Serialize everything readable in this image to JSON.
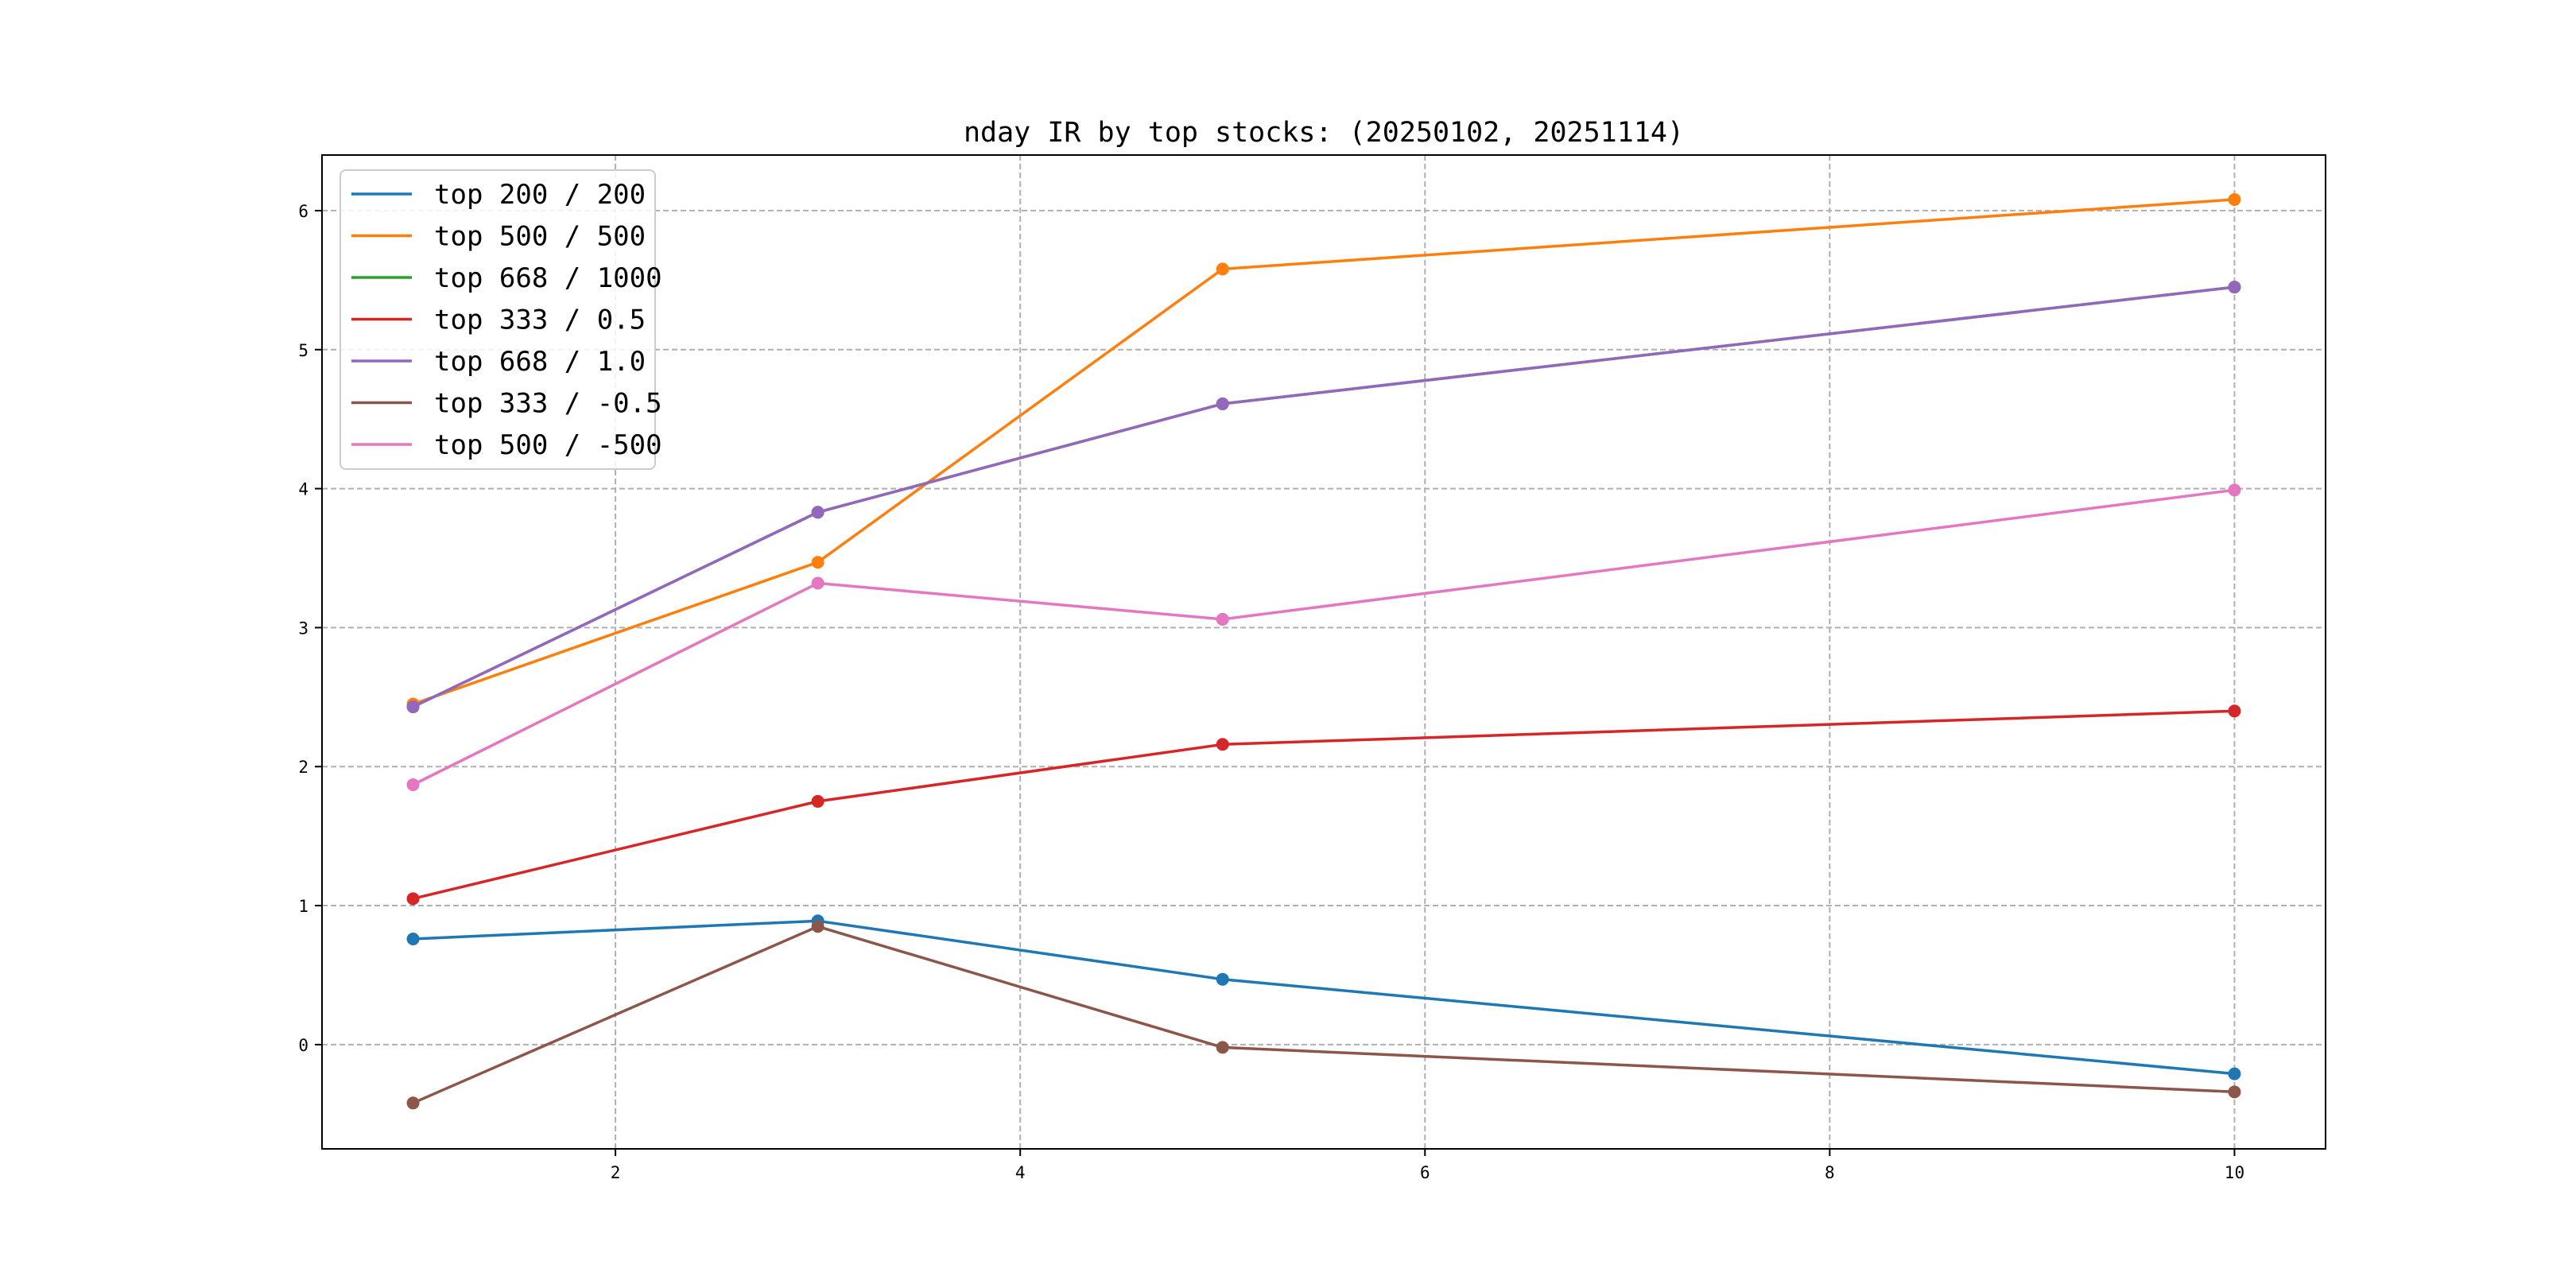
{
  "chart_data": {
    "type": "line",
    "title": "nday IR by top stocks: (20250102, 20251114)",
    "xlabel": "",
    "ylabel": "",
    "xlim": [
      0.55,
      10.45
    ],
    "ylim": [
      -0.75,
      6.4
    ],
    "x_ticks": [
      2,
      4,
      6,
      8,
      10
    ],
    "y_ticks": [
      0,
      1,
      2,
      3,
      4,
      5,
      6
    ],
    "grid": true,
    "legend_position": "upper left",
    "x": [
      1,
      3,
      5,
      10
    ],
    "series": [
      {
        "name": "top 200 / 200",
        "color": "#1f77b4",
        "values": [
          0.76,
          0.89,
          0.47,
          -0.21
        ]
      },
      {
        "name": "top 500 / 500",
        "color": "#ff7f0e",
        "values": [
          2.45,
          3.47,
          5.58,
          6.08
        ]
      },
      {
        "name": "top 668 / 1000",
        "color": "#2ca02c",
        "values": [
          2.43,
          3.83,
          4.61,
          5.45
        ]
      },
      {
        "name": "top 333 / 0.5",
        "color": "#d62728",
        "values": [
          1.05,
          1.75,
          2.16,
          2.4
        ]
      },
      {
        "name": "top 668 / 1.0",
        "color": "#9467bd",
        "values": [
          2.43,
          3.83,
          4.61,
          5.45
        ]
      },
      {
        "name": "top 333 / -0.5",
        "color": "#8c564b",
        "values": [
          -0.42,
          0.85,
          -0.02,
          -0.34
        ]
      },
      {
        "name": "top 500 / -500",
        "color": "#e377c2",
        "values": [
          1.87,
          3.32,
          3.06,
          3.99
        ]
      }
    ]
  }
}
